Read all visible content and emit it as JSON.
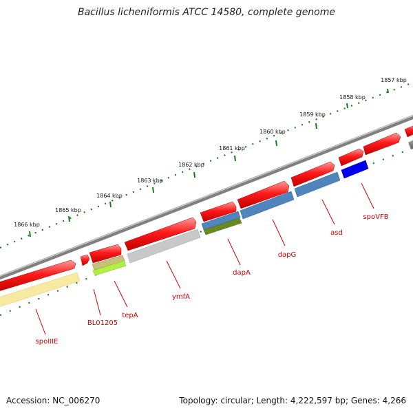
{
  "title": "Bacillus licheniformis ATCC 14580, complete genome",
  "footer": {
    "accession": "Accession: NC_006270",
    "summary": "Topology: circular; Length: 4,222,597 bp; Genes: 4,266"
  },
  "scale": {
    "unit": "kbp",
    "ticks": [
      "1857 kbp",
      "1858 kbp",
      "1859 kbp",
      "1860 kbp",
      "1861 kbp",
      "1862 kbp",
      "1863 kbp",
      "1864 kbp",
      "1865 kbp",
      "1866 kbp"
    ]
  },
  "genes": [
    {
      "name": "spoIIIE",
      "color": "#f5eaa0"
    },
    {
      "name": "BL01205",
      "color": "#c8c07a"
    },
    {
      "name": "tepA",
      "color": "#b0f040"
    },
    {
      "name": "ymfA",
      "color": "#c8c8c8"
    },
    {
      "name": "dapA",
      "color": "#6a8a20"
    },
    {
      "name": "dapG",
      "color": "#4f84bc"
    },
    {
      "name": "asd",
      "color": "#4f84bc"
    },
    {
      "name": "spoVFB",
      "color": "#0000ee"
    }
  ],
  "colors": {
    "forward_strand": "#ee1111",
    "backbone": "#808080",
    "tick": "#1a7a1a",
    "label": "#cc0000"
  }
}
